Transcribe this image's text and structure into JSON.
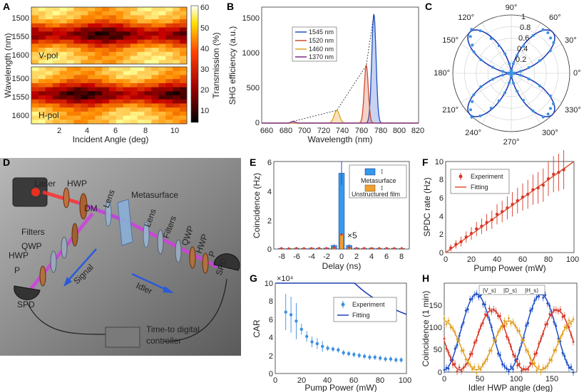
{
  "panel_labels": {
    "a": "A",
    "b": "B",
    "c": "C",
    "d": "D",
    "e": "E",
    "f": "F",
    "g": "G",
    "h": "H"
  },
  "colors": {
    "blue": "#1f4fc8",
    "red": "#d63a2a",
    "orange": "#e0a020",
    "purple": "#7a2a8a",
    "pointblue": "#3c90e0",
    "bar_blue": "#3399ee",
    "bar_orange": "#f0a030"
  },
  "chart_data": [
    {
      "id": "A",
      "type": "heatmap",
      "xlabel": "Incident Angle (deg)",
      "ylabel": "Wavelength (nm)",
      "x_ticks": [
        "2",
        "4",
        "6",
        "8",
        "10"
      ],
      "y_ticks": [
        "1500",
        "1550",
        "1600"
      ],
      "subpanels": [
        "V-pol",
        "H-pol"
      ],
      "colorbar_label": "Transmission (%)",
      "colorbar_ticks": [
        "60",
        "50",
        "40",
        "30",
        "20",
        "10"
      ]
    },
    {
      "id": "B",
      "type": "line",
      "xlabel": "Wavelength (nm)",
      "ylabel": "SHG efficiency (a.u.)",
      "x_ticks": [
        "660",
        "680",
        "700",
        "720",
        "740",
        "760",
        "780",
        "800",
        "820"
      ],
      "y_ticks": [
        "0",
        "500",
        "1000",
        "1500"
      ],
      "xlim": [
        655,
        820
      ],
      "ylim": [
        0,
        1650
      ],
      "series": [
        {
          "name": "1545 nm",
          "center": 773,
          "peak": 1550,
          "width": 3.2
        },
        {
          "name": "1520 nm",
          "center": 765,
          "peak": 820,
          "width": 3.0
        },
        {
          "name": "1460 nm",
          "center": 734,
          "peak": 180,
          "width": 4.0
        },
        {
          "name": "1370 nm",
          "center": 688,
          "peak": 25,
          "width": 3.0
        }
      ]
    },
    {
      "id": "C",
      "type": "polar",
      "angle_labels": [
        "90°",
        "60°",
        "30°",
        "0°",
        "330°",
        "300°",
        "270°",
        "240°",
        "210°",
        "180°",
        "150°",
        "120°"
      ],
      "r_ticks": [
        "1",
        "0.8",
        "0.6",
        "0.4",
        "0.2"
      ]
    },
    {
      "id": "D",
      "type": "diagram",
      "labels": [
        "Laser",
        "HWP",
        "DM",
        "Lens",
        "Metasurface",
        "Lens",
        "Filters",
        "QWP",
        "HWP",
        "P",
        "SPD",
        "Filters",
        "QWP",
        "HWP",
        "P",
        "SPD",
        "Signal",
        "Idler",
        "Time-to digital",
        "controller"
      ]
    },
    {
      "id": "E",
      "type": "bar",
      "xlabel": "Delay (ns)",
      "ylabel": "Coincidence (Hz)",
      "x_ticks": [
        "-8",
        "-6",
        "-4",
        "-2",
        "0",
        "2",
        "4",
        "6",
        "8"
      ],
      "y_ticks": [
        "0",
        "2",
        "4",
        "6"
      ],
      "xlim": [
        -9,
        9
      ],
      "ylim": [
        0,
        6
      ],
      "series": [
        {
          "name": "Metasurface",
          "x": [
            -8,
            -7,
            -6,
            -5,
            -4,
            -3,
            -2,
            -1,
            0,
            1,
            2,
            3,
            4,
            5,
            6,
            7,
            8
          ],
          "values": [
            0.05,
            0.04,
            0.05,
            0.04,
            0.06,
            0.05,
            0.07,
            0.25,
            5.2,
            0.25,
            0.07,
            0.05,
            0.06,
            0.05,
            0.04,
            0.05,
            0.04
          ]
        },
        {
          "name": "Unstructured film",
          "x": [
            -8,
            -7,
            -6,
            -5,
            -4,
            -3,
            -2,
            -1,
            0,
            1,
            2,
            3,
            4,
            5,
            6,
            7,
            8
          ],
          "values": [
            0.05,
            0.04,
            0.06,
            0.05,
            0.05,
            0.06,
            0.05,
            0.1,
            1.0,
            0.1,
            0.05,
            0.06,
            0.05,
            0.05,
            0.06,
            0.05,
            0.05
          ]
        }
      ],
      "annotation": "×5"
    },
    {
      "id": "F",
      "type": "scatter",
      "xlabel": "Pump Power (mW)",
      "ylabel": "SPDC rate (Hz)",
      "x_ticks": [
        "0",
        "20",
        "40",
        "60",
        "80",
        "100"
      ],
      "y_ticks": [
        "0",
        "2",
        "4",
        "6",
        "8",
        "10"
      ],
      "xlim": [
        0,
        100
      ],
      "ylim": [
        0,
        10
      ],
      "legend": [
        "Experiment",
        "Fitting"
      ],
      "x": [
        4,
        8,
        12,
        16,
        20,
        24,
        28,
        32,
        36,
        40,
        44,
        48,
        52,
        56,
        60,
        64,
        68,
        72,
        76,
        80,
        84,
        88,
        92
      ],
      "y": [
        0.5,
        0.9,
        1.2,
        1.7,
        2.1,
        2.6,
        2.9,
        3.3,
        3.6,
        4.2,
        4.5,
        4.9,
        5.3,
        5.7,
        6.1,
        6.4,
        6.9,
        7.1,
        7.4,
        8.1,
        8.6,
        8.8,
        9.1
      ],
      "fit_slope": 0.1
    },
    {
      "id": "G",
      "type": "scatter",
      "xlabel": "Pump Power (mW)",
      "ylabel": "CAR",
      "exponent": "×10⁴",
      "x_ticks": [
        "0",
        "20",
        "40",
        "60",
        "80",
        "100"
      ],
      "y_ticks": [
        "0",
        "2",
        "4",
        "6",
        "8",
        "10"
      ],
      "xlim": [
        0,
        100
      ],
      "ylim": [
        0,
        10
      ],
      "legend": [
        "Experiment",
        "Fitting"
      ],
      "x": [
        8,
        12,
        16,
        20,
        24,
        28,
        32,
        36,
        40,
        44,
        48,
        52,
        56,
        60,
        64,
        68,
        72,
        76,
        80,
        84,
        88,
        92,
        96
      ],
      "y": [
        6.8,
        6.5,
        5.8,
        4.9,
        4.1,
        3.5,
        3.3,
        3.0,
        2.8,
        2.7,
        2.6,
        2.3,
        2.2,
        2.1,
        2.0,
        1.9,
        1.8,
        1.8,
        1.7,
        1.6,
        1.6,
        1.5,
        1.5
      ]
    },
    {
      "id": "H",
      "type": "scatter",
      "xlabel": "Idler HWP angle (deg)",
      "ylabel": "Coincidence (1 min)",
      "x_ticks": [
        "0",
        "50",
        "100",
        "150"
      ],
      "y_ticks": [
        "0",
        "50",
        "100",
        "150"
      ],
      "xlim": [
        0,
        185
      ],
      "ylim": [
        0,
        200
      ],
      "legend": [
        "|V_s⟩",
        "|D_s⟩",
        "|H_s⟩"
      ],
      "series": [
        {
          "name": "|V_s⟩",
          "phase": 135,
          "amp": 170
        },
        {
          "name": "|D_s⟩",
          "phase": 157,
          "amp": 135
        },
        {
          "name": "|H_s⟩",
          "phase": 90,
          "amp": 110
        }
      ]
    }
  ]
}
